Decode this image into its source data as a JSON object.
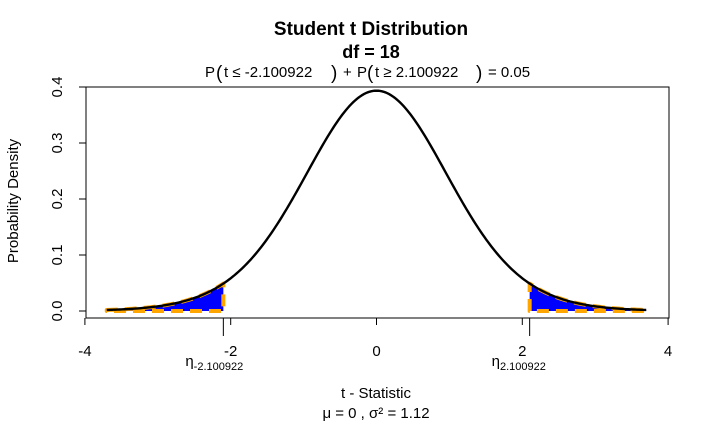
{
  "chart_data": {
    "type": "line",
    "title": "Student t Distribution",
    "subtitle": "df  =  18",
    "probability_statement": {
      "p_open": "P",
      "left_term": "t ≤ -2.100922",
      "plus": "+",
      "right_term": "t ≥ 2.100922",
      "equals": "= 0.05"
    },
    "df": 18,
    "critical_value": 2.100922,
    "alpha": 0.05,
    "xlabel": "t - Statistic",
    "sub_xlabel": "μ =  0 , σ² =  1.12",
    "ylabel": "Probability Density",
    "xlim": [
      -4,
      4
    ],
    "ylim": [
      0,
      0.4
    ],
    "curve_x_range": [
      -3.7,
      3.7
    ],
    "x_ticks": [
      -4,
      -2,
      0,
      2,
      4
    ],
    "x_tick_labels": [
      "-4",
      "-2",
      "0",
      "2",
      "4"
    ],
    "y_ticks": [
      0.0,
      0.1,
      0.2,
      0.3,
      0.4
    ],
    "y_tick_labels": [
      "0.0",
      "0.1",
      "0.2",
      "0.3",
      "0.4"
    ],
    "critical_labels": [
      {
        "base": "η",
        "sub": "-2.100922",
        "x": -2.100922
      },
      {
        "base": "η",
        "sub": "2.100922",
        "x": 2.100922
      }
    ],
    "shaded_regions": [
      {
        "from": -3.7,
        "to": -2.100922
      },
      {
        "from": 2.100922,
        "to": 3.7
      }
    ],
    "colors": {
      "curve": "#000000",
      "fill": "#0000ff",
      "region_border": "#ffa500"
    }
  }
}
